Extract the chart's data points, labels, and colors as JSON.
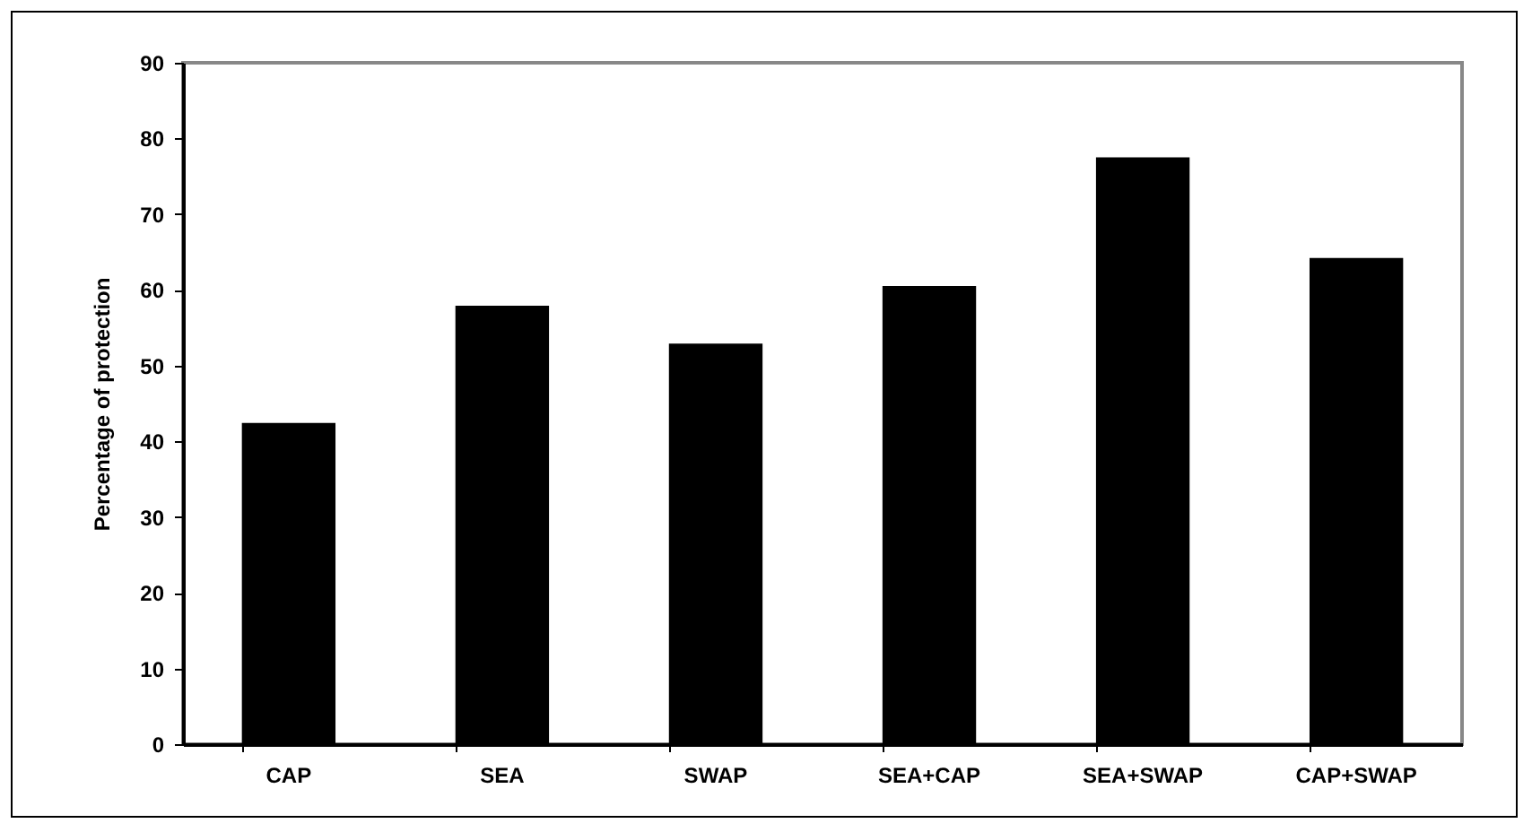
{
  "chart_data": {
    "type": "bar",
    "ylabel": "Percentage of protection",
    "categories": [
      "CAP",
      "SEA",
      "SWAP",
      "SEA+CAP",
      "SEA+SWAP",
      "CAP+SWAP"
    ],
    "values": [
      42.3,
      57.8,
      52.8,
      60.4,
      77.4,
      64.1
    ],
    "color": "#000000",
    "ylim": [
      0,
      90
    ],
    "yticks": [
      0,
      10,
      20,
      30,
      40,
      50,
      60,
      70,
      80,
      90
    ],
    "grid": false
  }
}
